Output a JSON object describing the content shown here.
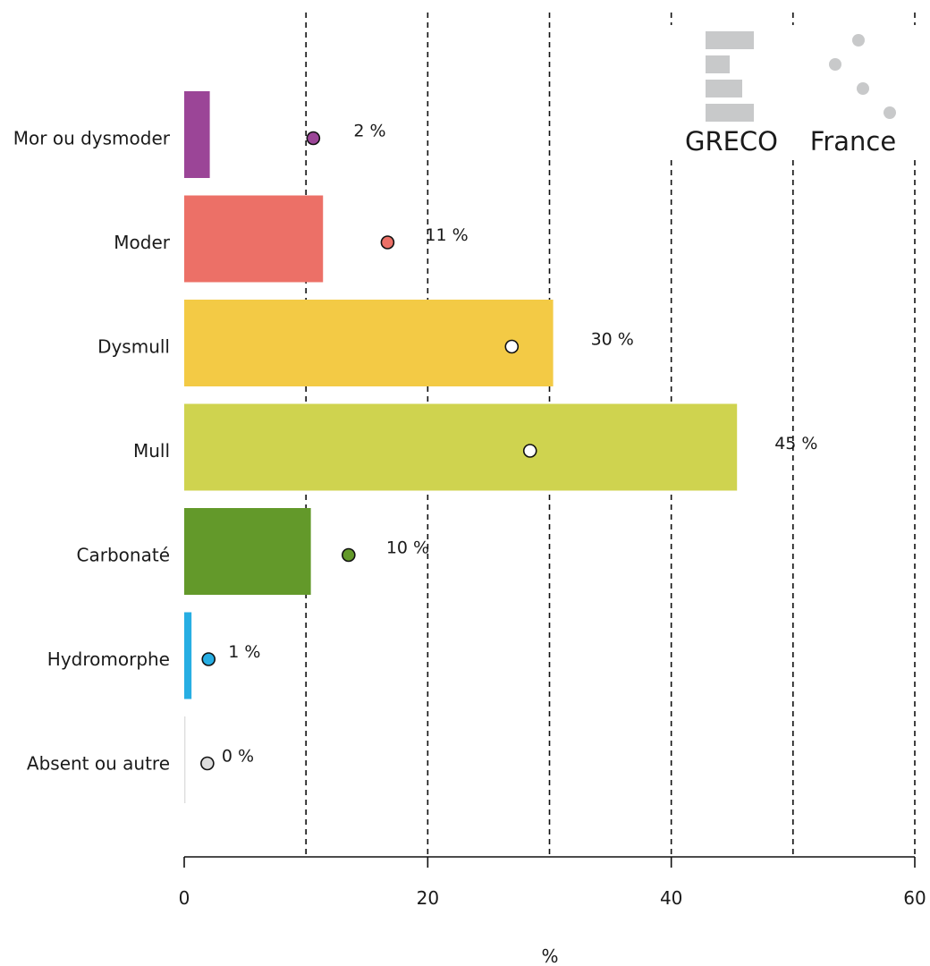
{
  "chart_data": {
    "type": "bar",
    "categories": [
      "Mor ou dysmoder",
      "Moder",
      "Dysmull",
      "Mull",
      "Carbonaté",
      "Hydromorphe",
      "Absent ou autre"
    ],
    "series": [
      {
        "name": "GRECO",
        "kind": "bar",
        "values": [
          2.1,
          11.4,
          30.3,
          45.4,
          10.4,
          0.6,
          0.1
        ]
      },
      {
        "name": "France",
        "kind": "point",
        "values": [
          10.6,
          16.7,
          26.9,
          28.4,
          13.5,
          2.0,
          1.9
        ]
      }
    ],
    "value_labels": [
      "2 %",
      "11 %",
      "30 %",
      "45 %",
      "10 %",
      "1 %",
      "0 %"
    ],
    "colors": [
      "#9b4597",
      "#ec7067",
      "#f3ca45",
      "#cfd34f",
      "#63992a",
      "#27aee3",
      "#dddddd"
    ],
    "legend_color": "#c8c9ca",
    "xlabel": "%",
    "xlim": [
      0,
      60
    ],
    "xticks": [
      "0",
      "20",
      "40",
      "60"
    ],
    "gridlines": [
      10,
      20,
      30,
      40,
      50,
      60
    ],
    "grid": true,
    "legend": {
      "placement": "top-right",
      "items": [
        {
          "label": "GRECO",
          "symbol": "bar-icon"
        },
        {
          "label": "France",
          "symbol": "dots-icon"
        }
      ]
    }
  }
}
